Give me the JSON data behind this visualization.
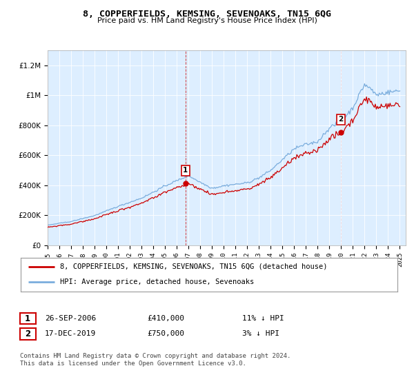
{
  "title": "8, COPPERFIELDS, KEMSING, SEVENOAKS, TN15 6QG",
  "subtitle": "Price paid vs. HM Land Registry's House Price Index (HPI)",
  "legend_line1": "8, COPPERFIELDS, KEMSING, SEVENOAKS, TN15 6QG (detached house)",
  "legend_line2": "HPI: Average price, detached house, Sevenoaks",
  "transaction1_date": "26-SEP-2006",
  "transaction1_price": "£410,000",
  "transaction1_hpi": "11% ↓ HPI",
  "transaction2_date": "17-DEC-2019",
  "transaction2_price": "£750,000",
  "transaction2_hpi": "3% ↓ HPI",
  "footnote": "Contains HM Land Registry data © Crown copyright and database right 2024.\nThis data is licensed under the Open Government Licence v3.0.",
  "hpi_color": "#7aaddd",
  "price_color": "#cc0000",
  "vline_color": "#cc0000",
  "background_color": "#ddeeff",
  "plot_bg_color": "#ffffff",
  "ylim": [
    0,
    1300000
  ],
  "yticks": [
    0,
    200000,
    400000,
    600000,
    800000,
    1000000,
    1200000
  ],
  "ytick_labels": [
    "£0",
    "£200K",
    "£400K",
    "£600K",
    "£800K",
    "£1M",
    "£1.2M"
  ],
  "transaction1_x": 2006.74,
  "transaction1_y": 410000,
  "transaction2_x": 2019.96,
  "transaction2_y": 750000,
  "xmin": 1995,
  "xmax": 2025.5
}
